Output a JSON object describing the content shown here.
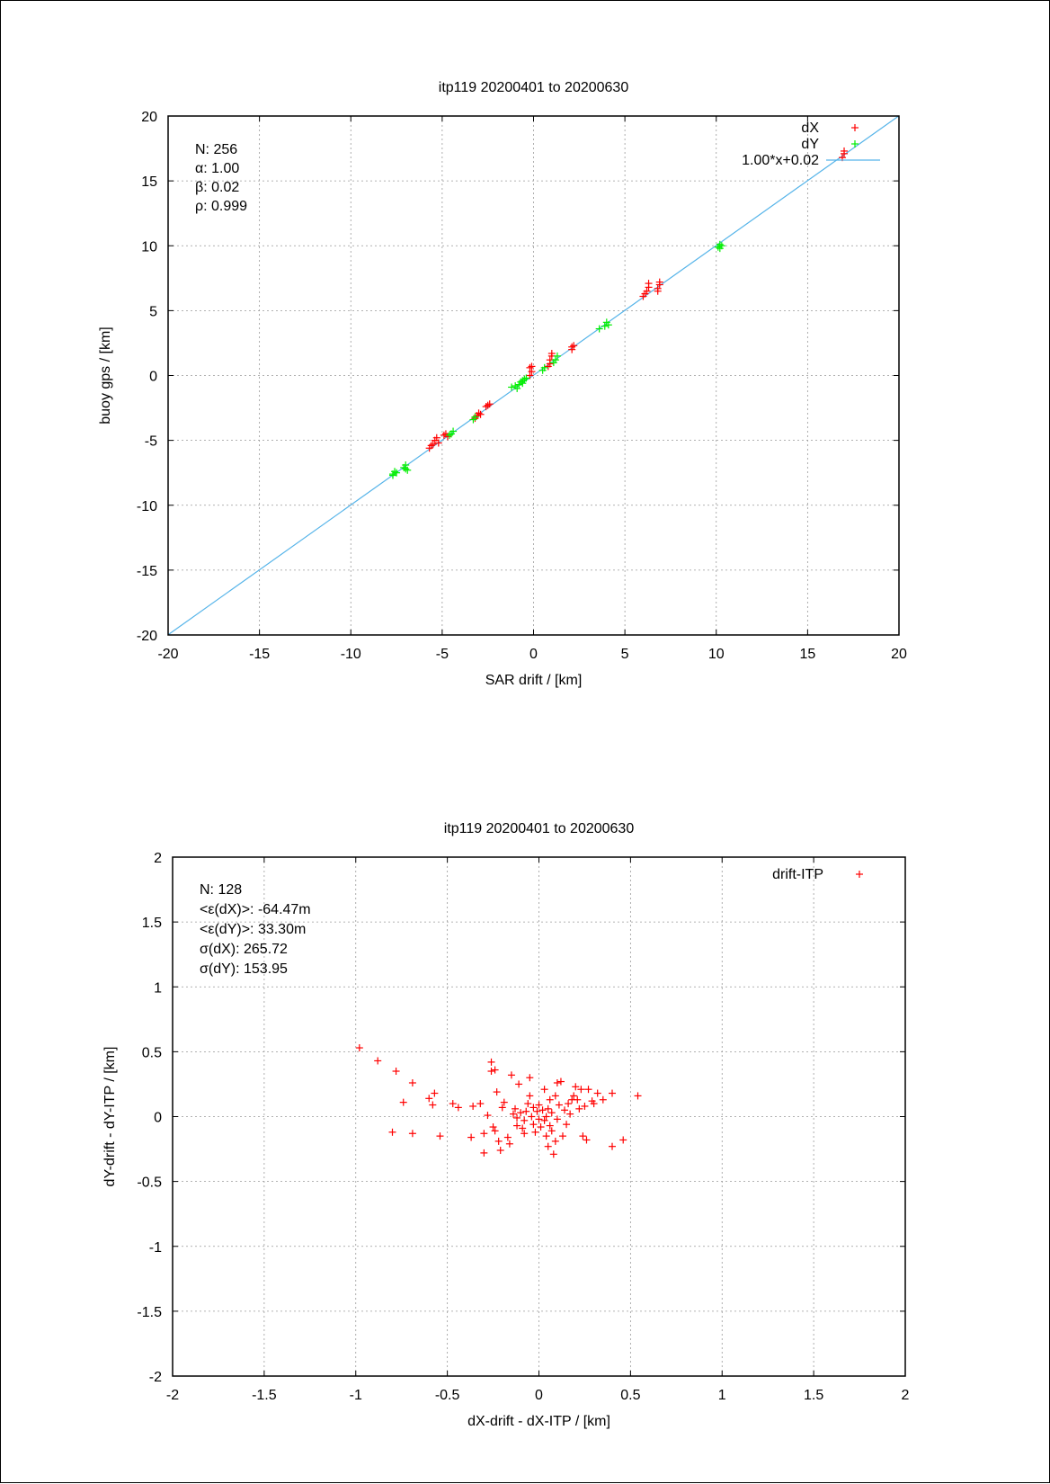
{
  "charts": [
    {
      "title": "itp119 20200401 to 20200630",
      "xlabel": "SAR drift / [km]",
      "ylabel": "buoy gps / [km]",
      "stats": [
        "N: 256",
        "α: 1.00",
        "β: 0.02",
        "ρ: 0.999"
      ],
      "legend": [
        "dX",
        "dY",
        "1.00*x+0.02"
      ]
    },
    {
      "title": "itp119 20200401 to 20200630",
      "xlabel": "dX-drift - dX-ITP / [km]",
      "ylabel": "dY-drift - dY-ITP / [km]",
      "stats": [
        "N: 128",
        "<ε(dX)>:  -64.47m",
        "<ε(dY)>: 33.30m",
        "σ(dX):  265.72",
        "σ(dY):  153.95"
      ],
      "legend": [
        "drift-ITP"
      ]
    }
  ],
  "chart_data": [
    {
      "type": "scatter",
      "title": "itp119 20200401 to 20200630",
      "xlabel": "SAR drift / [km]",
      "ylabel": "buoy gps / [km]",
      "xlim": [
        -20,
        20
      ],
      "ylim": [
        -20,
        20
      ],
      "xticks": [
        -20,
        -15,
        -10,
        -5,
        0,
        5,
        10,
        15,
        20
      ],
      "yticks": [
        -20,
        -15,
        -10,
        -5,
        0,
        5,
        10,
        15,
        20
      ],
      "grid": true,
      "legend_position": "top-right",
      "series": [
        {
          "name": "dX",
          "color": "#ff0000",
          "marker": "+",
          "points": [
            [
              -5.7,
              -5.6
            ],
            [
              -5.5,
              -5.3
            ],
            [
              -5.4,
              -5.0
            ],
            [
              -5.3,
              -4.8
            ],
            [
              -5.6,
              -5.4
            ],
            [
              -5.2,
              -5.2
            ],
            [
              -4.9,
              -4.6
            ],
            [
              -4.8,
              -4.5
            ],
            [
              -4.7,
              -4.7
            ],
            [
              -3.1,
              -3.1
            ],
            [
              -3.0,
              -2.9
            ],
            [
              -2.9,
              -3.0
            ],
            [
              -3.2,
              -3.3
            ],
            [
              -2.5,
              -2.3
            ],
            [
              -2.4,
              -2.2
            ],
            [
              -2.6,
              -2.4
            ],
            [
              -0.2,
              0.0
            ],
            [
              -0.1,
              0.3
            ],
            [
              -0.2,
              0.6
            ],
            [
              -0.1,
              0.7
            ],
            [
              0.9,
              0.9
            ],
            [
              0.9,
              1.2
            ],
            [
              1.0,
              1.5
            ],
            [
              1.0,
              1.7
            ],
            [
              0.8,
              0.7
            ],
            [
              2.1,
              2.0
            ],
            [
              2.1,
              2.2
            ],
            [
              2.2,
              2.3
            ],
            [
              6.0,
              6.1
            ],
            [
              6.2,
              6.5
            ],
            [
              6.3,
              6.8
            ],
            [
              6.3,
              7.1
            ],
            [
              6.1,
              6.3
            ],
            [
              6.8,
              6.5
            ],
            [
              6.8,
              6.7
            ],
            [
              6.9,
              7.0
            ],
            [
              6.9,
              7.2
            ],
            [
              16.9,
              16.8
            ],
            [
              17.0,
              17.1
            ],
            [
              17.0,
              17.3
            ]
          ]
        },
        {
          "name": "dY",
          "color": "#00ee00",
          "marker": "+",
          "points": [
            [
              -7.7,
              -7.6
            ],
            [
              -7.6,
              -7.4
            ],
            [
              -7.7,
              -7.7
            ],
            [
              -7.5,
              -7.5
            ],
            [
              -7.0,
              -7.2
            ],
            [
              -7.0,
              -6.9
            ],
            [
              -6.9,
              -7.3
            ],
            [
              -7.1,
              -7.1
            ],
            [
              -4.5,
              -4.5
            ],
            [
              -4.4,
              -4.3
            ],
            [
              -4.6,
              -4.6
            ],
            [
              -3.3,
              -3.4
            ],
            [
              -3.2,
              -3.2
            ],
            [
              -1.2,
              -0.9
            ],
            [
              -1.0,
              -0.8
            ],
            [
              -0.9,
              -1.0
            ],
            [
              -0.8,
              -0.7
            ],
            [
              -0.7,
              -0.5
            ],
            [
              -0.6,
              -0.4
            ],
            [
              -0.5,
              -0.3
            ],
            [
              -0.6,
              -0.6
            ],
            [
              -0.4,
              -0.2
            ],
            [
              0.5,
              0.4
            ],
            [
              0.6,
              0.6
            ],
            [
              1.2,
              1.2
            ],
            [
              1.3,
              1.5
            ],
            [
              1.1,
              1.0
            ],
            [
              3.6,
              3.6
            ],
            [
              3.9,
              3.8
            ],
            [
              4.0,
              4.1
            ],
            [
              4.1,
              3.9
            ],
            [
              10.1,
              9.9
            ],
            [
              10.2,
              10.1
            ],
            [
              10.3,
              10.0
            ],
            [
              10.2,
              9.8
            ]
          ]
        },
        {
          "name": "1.00*x+0.02",
          "type": "line",
          "color": "#56b4e9",
          "slope": 1.0,
          "intercept": 0.02
        }
      ]
    },
    {
      "type": "scatter",
      "title": "itp119 20200401 to 20200630",
      "xlabel": "dX-drift - dX-ITP / [km]",
      "ylabel": "dY-drift - dY-ITP / [km]",
      "xlim": [
        -2,
        2
      ],
      "ylim": [
        -2,
        2
      ],
      "xticks": [
        -2,
        -1.5,
        -1,
        -0.5,
        0,
        0.5,
        1,
        1.5,
        2
      ],
      "yticks": [
        -2,
        -1.5,
        -1,
        -0.5,
        0,
        0.5,
        1,
        1.5,
        2
      ],
      "grid": true,
      "legend_position": "top-right",
      "series": [
        {
          "name": "drift-ITP",
          "color": "#ff0000",
          "marker": "+",
          "points": [
            [
              -0.98,
              0.53
            ],
            [
              -0.88,
              0.43
            ],
            [
              -0.78,
              0.35
            ],
            [
              -0.74,
              0.11
            ],
            [
              -0.69,
              0.26
            ],
            [
              -0.8,
              -0.12
            ],
            [
              -0.69,
              -0.13
            ],
            [
              -0.6,
              0.14
            ],
            [
              -0.57,
              0.18
            ],
            [
              -0.58,
              0.09
            ],
            [
              -0.54,
              -0.15
            ],
            [
              -0.47,
              0.1
            ],
            [
              -0.44,
              0.07
            ],
            [
              -0.36,
              0.08
            ],
            [
              -0.37,
              -0.16
            ],
            [
              -0.32,
              0.1
            ],
            [
              -0.3,
              -0.13
            ],
            [
              -0.3,
              -0.28
            ],
            [
              -0.28,
              0.01
            ],
            [
              -0.26,
              0.42
            ],
            [
              -0.26,
              0.35
            ],
            [
              -0.24,
              0.36
            ],
            [
              -0.25,
              -0.08
            ],
            [
              -0.24,
              -0.11
            ],
            [
              -0.23,
              0.19
            ],
            [
              -0.22,
              -0.19
            ],
            [
              -0.21,
              -0.26
            ],
            [
              -0.2,
              0.07
            ],
            [
              -0.19,
              0.11
            ],
            [
              -0.17,
              -0.16
            ],
            [
              -0.16,
              -0.21
            ],
            [
              -0.15,
              0.32
            ],
            [
              -0.14,
              0.02
            ],
            [
              -0.13,
              0.06
            ],
            [
              -0.12,
              -0.01
            ],
            [
              -0.12,
              -0.07
            ],
            [
              -0.11,
              0.25
            ],
            [
              -0.1,
              0.03
            ],
            [
              -0.09,
              -0.09
            ],
            [
              -0.08,
              -0.03
            ],
            [
              -0.08,
              -0.13
            ],
            [
              -0.07,
              0.04
            ],
            [
              -0.06,
              0.1
            ],
            [
              -0.05,
              0.3
            ],
            [
              -0.05,
              0.16
            ],
            [
              -0.04,
              0.0
            ],
            [
              -0.03,
              -0.06
            ],
            [
              -0.03,
              0.07
            ],
            [
              -0.02,
              -0.12
            ],
            [
              -0.01,
              0.04
            ],
            [
              0.0,
              0.09
            ],
            [
              0.0,
              -0.02
            ],
            [
              0.01,
              -0.08
            ],
            [
              0.02,
              0.05
            ],
            [
              0.03,
              0.21
            ],
            [
              0.03,
              -0.03
            ],
            [
              0.04,
              0.0
            ],
            [
              0.04,
              -0.15
            ],
            [
              0.05,
              -0.23
            ],
            [
              0.05,
              0.06
            ],
            [
              0.06,
              0.13
            ],
            [
              0.06,
              -0.07
            ],
            [
              0.07,
              -0.11
            ],
            [
              0.07,
              0.03
            ],
            [
              0.08,
              -0.29
            ],
            [
              0.09,
              -0.19
            ],
            [
              0.09,
              0.16
            ],
            [
              0.1,
              0.26
            ],
            [
              0.1,
              -0.02
            ],
            [
              0.11,
              0.09
            ],
            [
              0.12,
              0.27
            ],
            [
              0.13,
              -0.15
            ],
            [
              0.14,
              0.05
            ],
            [
              0.15,
              -0.06
            ],
            [
              0.16,
              0.1
            ],
            [
              0.17,
              0.02
            ],
            [
              0.18,
              0.13
            ],
            [
              0.19,
              0.16
            ],
            [
              0.2,
              0.23
            ],
            [
              0.21,
              0.13
            ],
            [
              0.22,
              0.06
            ],
            [
              0.23,
              0.21
            ],
            [
              0.24,
              -0.15
            ],
            [
              0.25,
              0.08
            ],
            [
              0.26,
              -0.18
            ],
            [
              0.27,
              0.21
            ],
            [
              0.29,
              0.12
            ],
            [
              0.3,
              0.1
            ],
            [
              0.32,
              0.18
            ],
            [
              0.35,
              0.13
            ],
            [
              0.4,
              0.18
            ],
            [
              0.4,
              -0.23
            ],
            [
              0.46,
              -0.18
            ],
            [
              0.54,
              0.16
            ]
          ]
        }
      ]
    }
  ]
}
